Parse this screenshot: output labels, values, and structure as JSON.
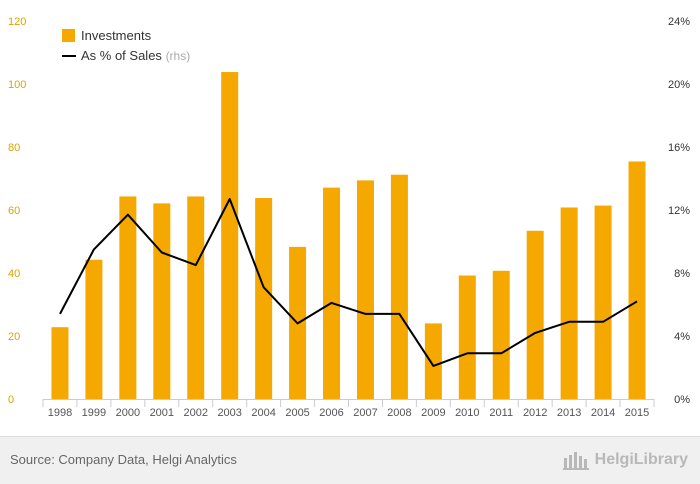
{
  "chart_data": {
    "type": "bar",
    "categories": [
      "1998",
      "1999",
      "2000",
      "2001",
      "2002",
      "2003",
      "2004",
      "2005",
      "2006",
      "2007",
      "2008",
      "2009",
      "2010",
      "2011",
      "2012",
      "2013",
      "2014",
      "2015"
    ],
    "series": [
      {
        "name": "Investments",
        "type": "bar",
        "axis": "left",
        "color": "#f5a800",
        "values": [
          22.8,
          44.2,
          64.3,
          62.1,
          64.3,
          103.8,
          63.8,
          48.3,
          67.1,
          69.4,
          71.2,
          24.0,
          39.2,
          40.7,
          53.4,
          60.8,
          61.4,
          75.4
        ]
      },
      {
        "name": "As % of Sales",
        "name_suffix": "(rhs)",
        "type": "line",
        "axis": "right",
        "color": "#000000",
        "unit": "%",
        "values": [
          5.4,
          9.5,
          11.7,
          9.3,
          8.5,
          12.7,
          7.1,
          4.8,
          6.1,
          5.4,
          5.4,
          2.1,
          2.9,
          2.9,
          4.2,
          4.9,
          4.9,
          6.2
        ]
      }
    ],
    "y_left": {
      "min": 0,
      "max": 120,
      "ticks": [
        "0",
        "20",
        "40",
        "60",
        "80",
        "100",
        "120"
      ]
    },
    "y_right": {
      "min": 0,
      "max": 24,
      "ticks": [
        "0%",
        "4%",
        "8%",
        "12%",
        "16%",
        "20%",
        "24%"
      ]
    },
    "legend": {
      "position": "top-left"
    },
    "grid": false
  },
  "footer": {
    "source": "Source: Company Data, Helgi Analytics",
    "brand": "HelgiLibrary"
  }
}
